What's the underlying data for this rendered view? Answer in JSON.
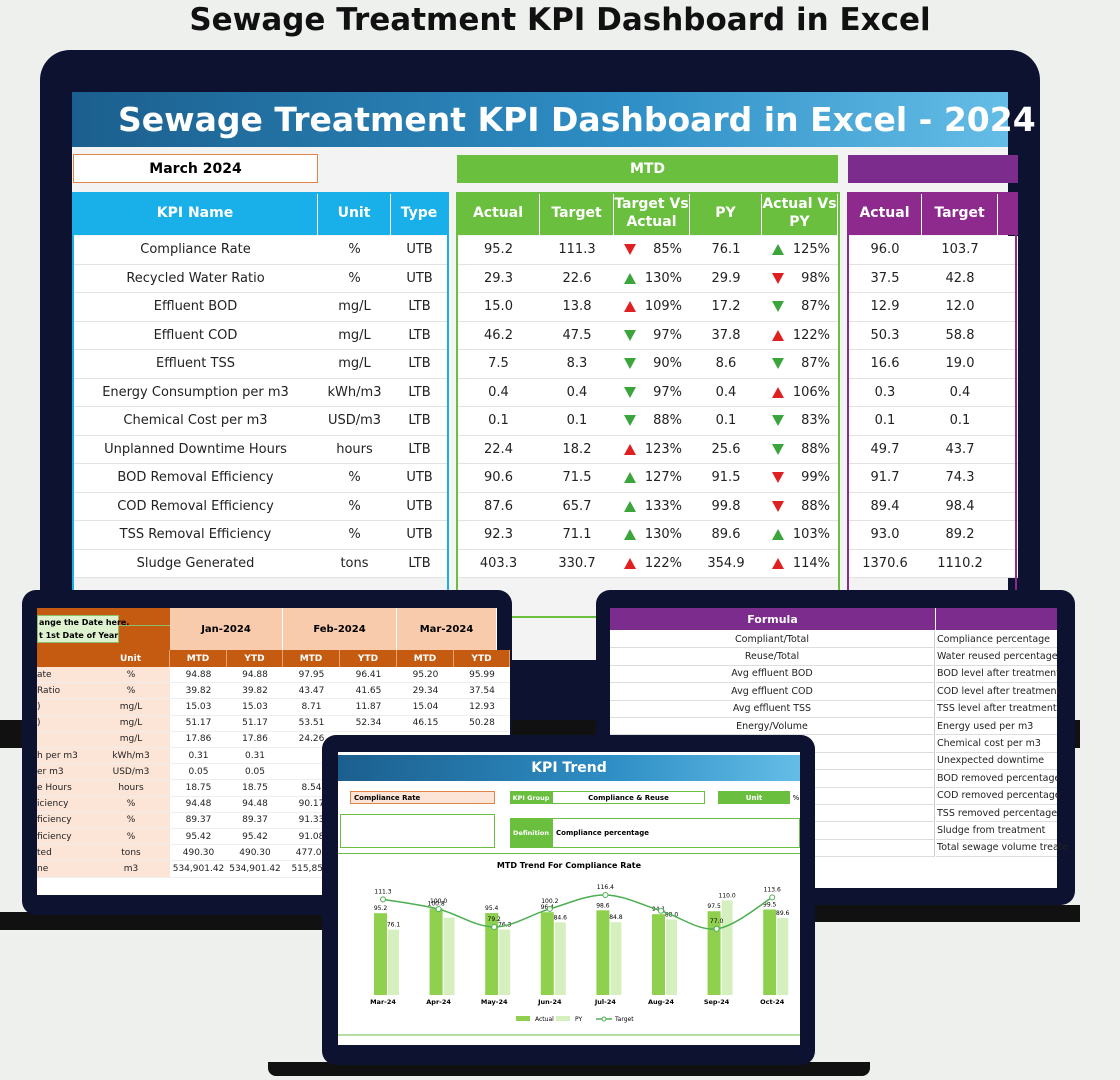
{
  "page_title": "Sewage Treatment KPI Dashboard in Excel",
  "main": {
    "banner": "Sewage Treatment KPI Dashboard in Excel - 2024",
    "month": "March 2024",
    "mtd_label": "MTD",
    "kpi_headers": [
      "KPI Name",
      "Unit",
      "Type"
    ],
    "mtd_headers": [
      "Actual",
      "Target",
      "Target Vs Actual",
      "PY",
      "Actual Vs PY"
    ],
    "ytd_headers": [
      "Actual",
      "Target"
    ],
    "rows": [
      {
        "name": "Compliance Rate",
        "unit": "%",
        "type": "UTB",
        "mtd": [
          "95.2",
          "111.3",
          "85%",
          "76.1",
          "125%"
        ],
        "ytd": [
          "96.0",
          "103.7"
        ]
      },
      {
        "name": "Recycled Water Ratio",
        "unit": "%",
        "type": "UTB",
        "mtd": [
          "29.3",
          "22.6",
          "130%",
          "29.9",
          "98%"
        ],
        "ytd": [
          "37.5",
          "42.8"
        ]
      },
      {
        "name": "Effluent BOD",
        "unit": "mg/L",
        "type": "LTB",
        "mtd": [
          "15.0",
          "13.8",
          "109%",
          "17.2",
          "87%"
        ],
        "ytd": [
          "12.9",
          "12.0"
        ]
      },
      {
        "name": "Effluent COD",
        "unit": "mg/L",
        "type": "LTB",
        "mtd": [
          "46.2",
          "47.5",
          "97%",
          "37.8",
          "122%"
        ],
        "ytd": [
          "50.3",
          "58.8"
        ]
      },
      {
        "name": "Effluent TSS",
        "unit": "mg/L",
        "type": "LTB",
        "mtd": [
          "7.5",
          "8.3",
          "90%",
          "8.6",
          "87%"
        ],
        "ytd": [
          "16.6",
          "19.0"
        ]
      },
      {
        "name": "Energy Consumption per m3",
        "unit": "kWh/m3",
        "type": "LTB",
        "mtd": [
          "0.4",
          "0.4",
          "97%",
          "0.4",
          "106%"
        ],
        "ytd": [
          "0.3",
          "0.4"
        ]
      },
      {
        "name": "Chemical Cost per m3",
        "unit": "USD/m3",
        "type": "LTB",
        "mtd": [
          "0.1",
          "0.1",
          "88%",
          "0.1",
          "83%"
        ],
        "ytd": [
          "0.1",
          "0.1"
        ]
      },
      {
        "name": "Unplanned Downtime Hours",
        "unit": "hours",
        "type": "LTB",
        "mtd": [
          "22.4",
          "18.2",
          "123%",
          "25.6",
          "88%"
        ],
        "ytd": [
          "49.7",
          "43.7"
        ]
      },
      {
        "name": "BOD Removal Efficiency",
        "unit": "%",
        "type": "UTB",
        "mtd": [
          "90.6",
          "71.5",
          "127%",
          "91.5",
          "99%"
        ],
        "ytd": [
          "91.7",
          "74.3"
        ]
      },
      {
        "name": "COD Removal Efficiency",
        "unit": "%",
        "type": "UTB",
        "mtd": [
          "87.6",
          "65.7",
          "133%",
          "99.8",
          "88%"
        ],
        "ytd": [
          "89.4",
          "98.4"
        ]
      },
      {
        "name": "TSS Removal Efficiency",
        "unit": "%",
        "type": "UTB",
        "mtd": [
          "92.3",
          "71.1",
          "130%",
          "89.6",
          "103%"
        ],
        "ytd": [
          "93.0",
          "89.2"
        ]
      },
      {
        "name": "Sludge Generated",
        "unit": "tons",
        "type": "LTB",
        "mtd": [
          "403.3",
          "330.7",
          "122%",
          "354.9",
          "114%"
        ],
        "ytd": [
          "1370.6",
          "1110.2"
        ]
      }
    ]
  },
  "trend_table": {
    "note": [
      "ange the Date here,",
      "t 1st Date of Year"
    ],
    "months": [
      "Jan-2024",
      "Feb-2024",
      "Mar-2024"
    ],
    "subheaders": [
      "Unit",
      "MTD",
      "YTD",
      "MTD",
      "YTD",
      "MTD",
      "YTD"
    ],
    "rows": [
      {
        "name": "ate",
        "cells": [
          "%",
          "94.88",
          "94.88",
          "97.95",
          "96.41",
          "95.20",
          "95.99"
        ]
      },
      {
        "name": "Ratio",
        "cells": [
          "%",
          "39.82",
          "39.82",
          "43.47",
          "41.65",
          "29.34",
          "37.54"
        ]
      },
      {
        "name": ")",
        "cells": [
          "mg/L",
          "15.03",
          "15.03",
          "8.71",
          "11.87",
          "15.04",
          "12.93"
        ]
      },
      {
        "name": ")",
        "cells": [
          "mg/L",
          "51.17",
          "51.17",
          "53.51",
          "52.34",
          "46.15",
          "50.28"
        ]
      },
      {
        "name": null,
        "cells": [
          "mg/L",
          "17.86",
          "17.86",
          "24.26"
        ]
      },
      {
        "name": "h per m3",
        "cells": [
          "kWh/m3",
          "0.31",
          "0.31"
        ]
      },
      {
        "name": "er m3",
        "cells": [
          "USD/m3",
          "0.05",
          "0.05"
        ]
      },
      {
        "name": "e Hours",
        "cells": [
          "hours",
          "18.75",
          "18.75",
          "8.54"
        ]
      },
      {
        "name": "iciency",
        "cells": [
          "%",
          "94.48",
          "94.48",
          "90.17"
        ]
      },
      {
        "name": "ficiency",
        "cells": [
          "%",
          "89.37",
          "89.37",
          "91.33"
        ]
      },
      {
        "name": "ficiency",
        "cells": [
          "%",
          "95.42",
          "95.42",
          "91.08"
        ]
      },
      {
        "name": "ted",
        "cells": [
          "tons",
          "490.30",
          "490.30",
          "477.02"
        ]
      },
      {
        "name": "ne",
        "cells": [
          "m3",
          "534,901.42",
          "534,901.42",
          "515,852."
        ]
      }
    ]
  },
  "formula_table": {
    "header": "Formula",
    "rows": [
      {
        "formula": "Compliant/Total",
        "description": "Compliance percentage"
      },
      {
        "formula": "Reuse/Total",
        "description": "Water reused percentage"
      },
      {
        "formula": "Avg effluent BOD",
        "description": "BOD level after treatment"
      },
      {
        "formula": "Avg effluent COD",
        "description": "COD level after treatment"
      },
      {
        "formula": "Avg effluent TSS",
        "description": "TSS level after treatment"
      },
      {
        "formula": "Energy/Volume",
        "description": "Energy used per m3"
      },
      {
        "formula": null,
        "description": "Chemical cost per m3"
      },
      {
        "formula": null,
        "description": "Unexpected downtime"
      },
      {
        "formula": null,
        "description": "BOD removed percentage"
      },
      {
        "formula": null,
        "description": "COD removed percentage"
      },
      {
        "formula": null,
        "description": "TSS removed percentage"
      },
      {
        "formula": null,
        "description": "Sludge from treatment"
      },
      {
        "formula": null,
        "description": "Total sewage volume treate"
      }
    ]
  },
  "kpi_trend": {
    "title": "KPI Trend",
    "kpi": "Compliance Rate",
    "group_label": "KPI Group",
    "group": "Compliance & Reuse",
    "unit_label": "Unit",
    "unit": "%",
    "definition_label": "Definition",
    "definition": "Compliance percentage"
  },
  "chart_data": {
    "type": "bar",
    "title": "MTD Trend For Compliance Rate",
    "categories": [
      "Mar-24",
      "Apr-24",
      "May-24",
      "Jun-24",
      "Jul-24",
      "Aug-24",
      "Sep-24",
      "Oct-24"
    ],
    "series": [
      {
        "name": "Actual",
        "color": "#8fd14f",
        "values": [
          95.2,
          100.8,
          95.4,
          96.4,
          98.6,
          94.1,
          97.5,
          99.5
        ],
        "value_labels": [
          "95.2",
          "100.8",
          "95.4",
          "96.4",
          "98.6",
          "94.1",
          "97.5",
          "99.5"
        ]
      },
      {
        "name": "PY",
        "color": "#d5efbf",
        "values": [
          76.1,
          90,
          76.3,
          84.6,
          84.8,
          88,
          110,
          89.6
        ],
        "value_labels": [
          "76.1",
          null,
          "76.3",
          "84.6",
          "84.8",
          "88.0",
          "110.0",
          "89.6"
        ]
      },
      {
        "name": "Target",
        "type": "line",
        "color": "#4caf50",
        "values": [
          111.3,
          100,
          79.2,
          100.2,
          116.4,
          98,
          77,
          113.6
        ],
        "value_labels": [
          "111.3",
          "100.0",
          "79.2",
          "100.2",
          "116.4",
          null,
          "77.0",
          "113.6"
        ]
      }
    ]
  }
}
